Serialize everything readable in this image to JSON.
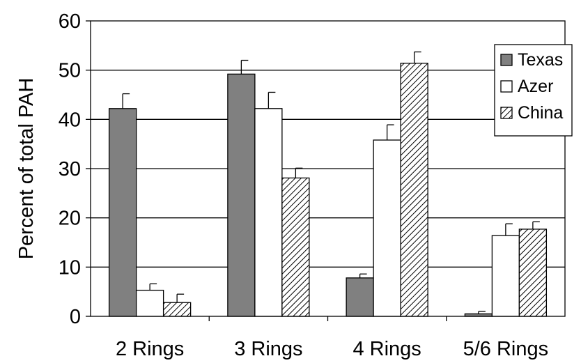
{
  "chart_data": {
    "type": "bar",
    "title": "",
    "xlabel": "",
    "ylabel": "Percent of total PAH",
    "ylim": [
      0,
      60
    ],
    "yticks": [
      0,
      10,
      20,
      30,
      40,
      50,
      60
    ],
    "grid": "horizontal",
    "legend_position": "top-right",
    "categories": [
      "2 Rings",
      "3 Rings",
      "4 Rings",
      "5/6 Rings"
    ],
    "series": [
      {
        "name": "Texas",
        "values": [
          42.2,
          49.2,
          7.8,
          0.5
        ],
        "errors": [
          3.0,
          2.8,
          0.8,
          0.5
        ],
        "fill": "#808080",
        "pattern": "solid"
      },
      {
        "name": "Azer",
        "values": [
          5.3,
          42.2,
          35.8,
          16.4
        ],
        "errors": [
          1.3,
          3.3,
          3.1,
          2.4
        ],
        "fill": "#ffffff",
        "pattern": "solid"
      },
      {
        "name": "China",
        "values": [
          2.8,
          28.1,
          51.4,
          17.7
        ],
        "errors": [
          1.7,
          2.0,
          2.3,
          1.5
        ],
        "fill": "#ffffff",
        "pattern": "diagonal-hatch"
      }
    ]
  }
}
